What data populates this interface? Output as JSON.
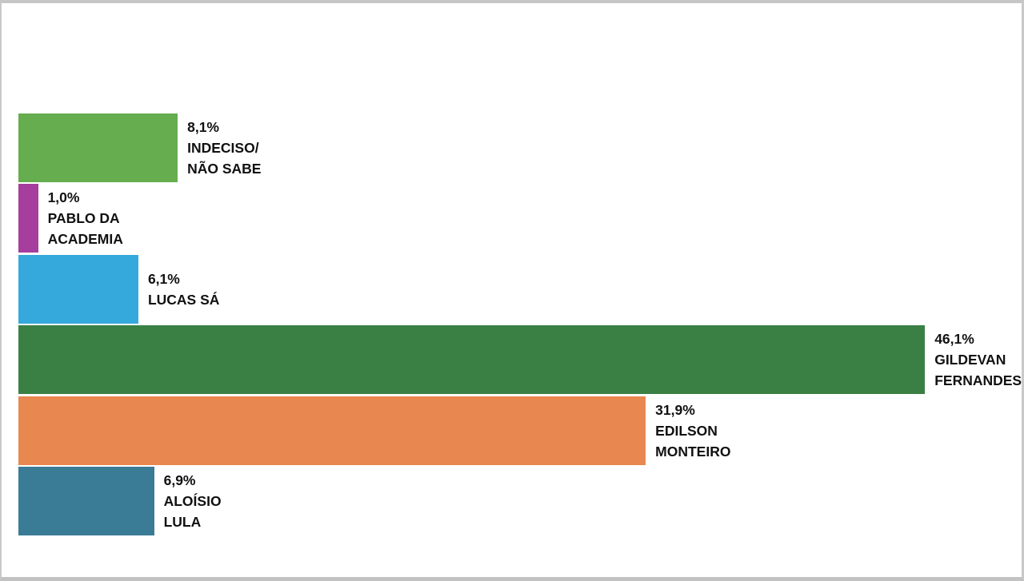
{
  "frame": {
    "background_color": "#ffffff",
    "border_color": "#c6c6c6"
  },
  "chart_data": {
    "type": "bar",
    "orientation": "horizontal",
    "title": "",
    "xlabel": "",
    "ylabel": "",
    "xlim": [
      0,
      50.2
    ],
    "grid": false,
    "legend": false,
    "value_suffix": "%",
    "decimal_separator": ",",
    "categories": [
      "INDECISO/NÃO SABE",
      "PABLO DA ACADEMIA",
      "LUCAS SÁ",
      "GILDEVAN FERNANDES",
      "EDILSON MONTEIRO",
      "ALOÍSIO LULA"
    ],
    "values": [
      8.1,
      1.0,
      6.1,
      46.1,
      31.9,
      6.9
    ],
    "label_text_color": "#111111",
    "bars": [
      {
        "value": 8.1,
        "value_label": "8,1%",
        "name_lines": [
          "INDECISO/",
          "NÃO SABE"
        ],
        "color": "#65ad4e"
      },
      {
        "value": 1.0,
        "value_label": "1,0%",
        "name_lines": [
          "PABLO DA",
          "ACADEMIA"
        ],
        "color": "#a53e9c"
      },
      {
        "value": 6.1,
        "value_label": "6,1%",
        "name_lines": [
          "LUCAS SÁ"
        ],
        "color": "#36a9dc"
      },
      {
        "value": 46.1,
        "value_label": "46,1%",
        "name_lines": [
          "GILDEVAN",
          "FERNANDES"
        ],
        "color": "#3a8045"
      },
      {
        "value": 31.9,
        "value_label": "31,9%",
        "name_lines": [
          "EDILSON",
          "MONTEIRO"
        ],
        "color": "#e8874f"
      },
      {
        "value": 6.9,
        "value_label": "6,9%",
        "name_lines": [
          "ALOÍSIO",
          "LULA"
        ],
        "color": "#3a7b95"
      }
    ]
  }
}
